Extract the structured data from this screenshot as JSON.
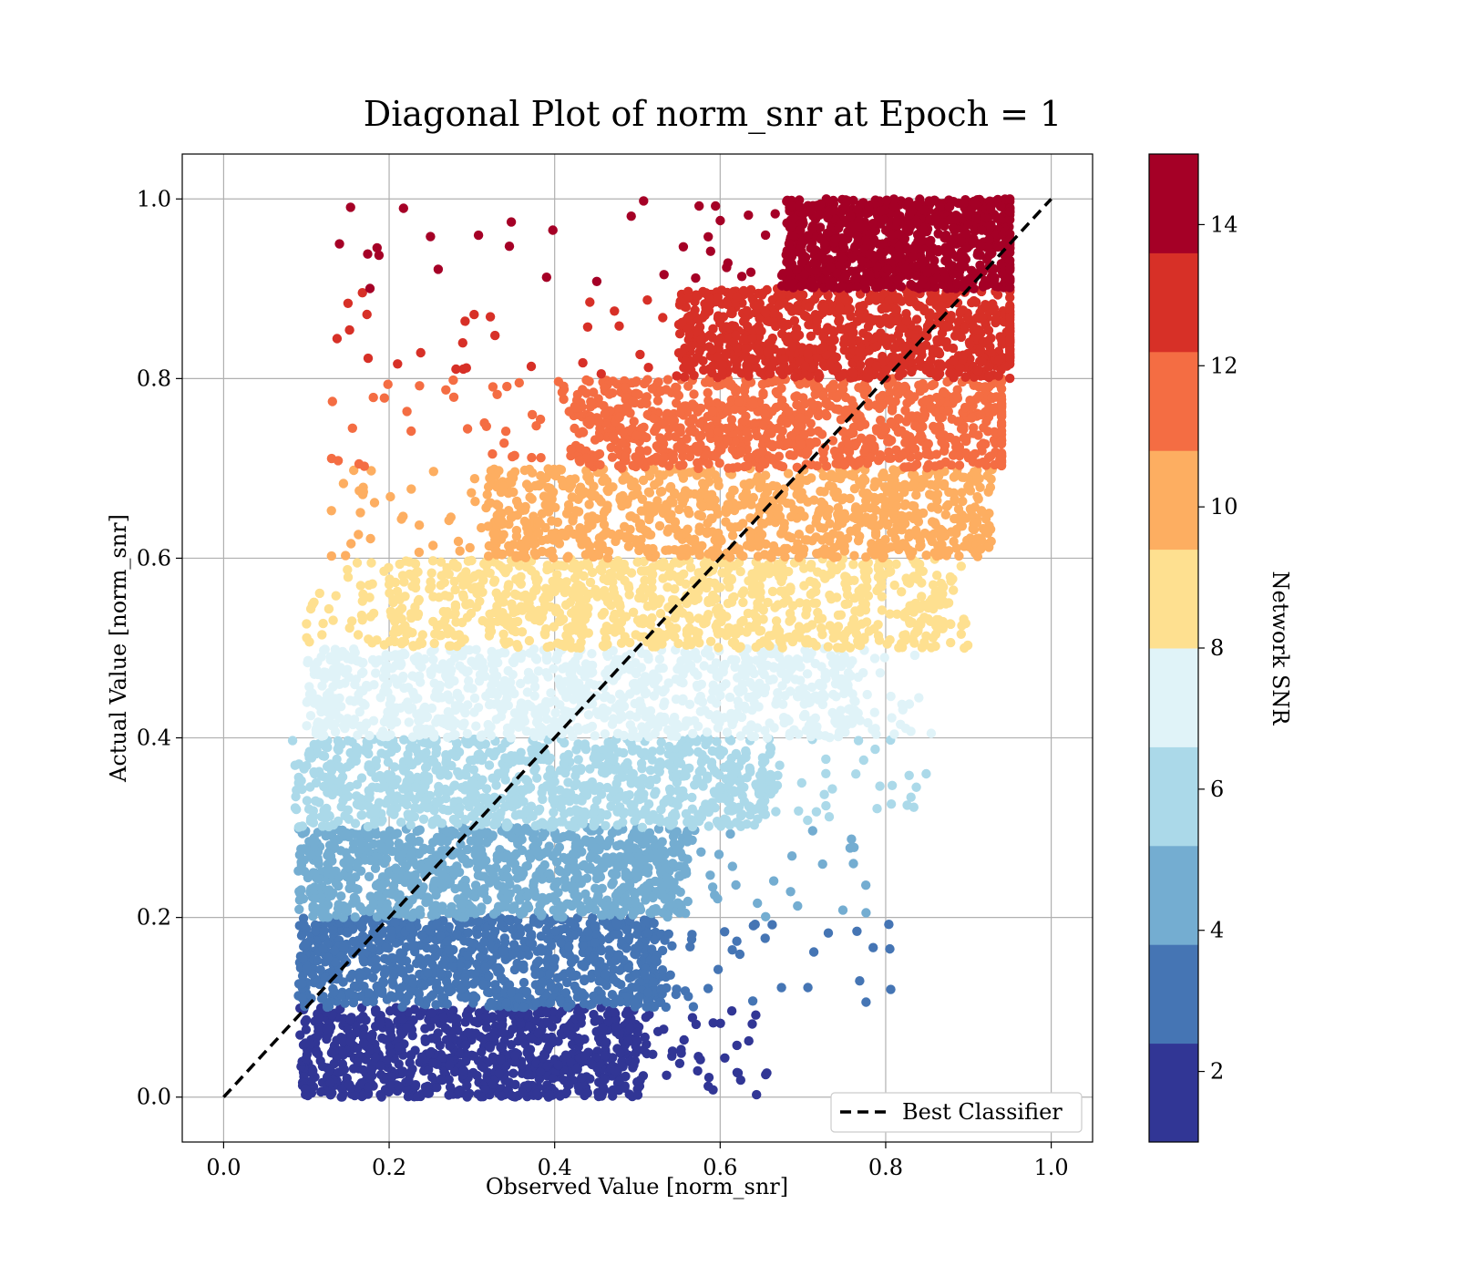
{
  "chart_data": {
    "type": "scatter",
    "title": "Diagonal Plot of norm_snr at Epoch = 1",
    "xlabel": "Observed Value [norm_snr]",
    "ylabel": "Actual Value [norm_snr]",
    "xlim": [
      -0.05,
      1.05
    ],
    "ylim": [
      -0.05,
      1.05
    ],
    "xticks": [
      0.0,
      0.2,
      0.4,
      0.6,
      0.8,
      1.0
    ],
    "xtick_labels": [
      "0.0",
      "0.2",
      "0.4",
      "0.6",
      "0.8",
      "1.0"
    ],
    "yticks": [
      0.0,
      0.2,
      0.4,
      0.6,
      0.8,
      1.0
    ],
    "ytick_labels": [
      "0.0",
      "0.2",
      "0.4",
      "0.6",
      "0.8",
      "1.0"
    ],
    "grid": true,
    "reference_line": {
      "label": "Best Classifier",
      "x": [
        0.0,
        1.0
      ],
      "y": [
        0.0,
        1.0
      ],
      "color": "#000000",
      "style": "dashed"
    },
    "legend": {
      "entries": [
        "Best Classifier"
      ],
      "placement": "lower-right"
    },
    "colorbar": {
      "label": "Network SNR",
      "range": [
        1,
        15
      ],
      "ticks": [
        2,
        4,
        6,
        8,
        10,
        12,
        14
      ],
      "tick_labels": [
        "2",
        "4",
        "6",
        "8",
        "10",
        "12",
        "14"
      ],
      "colors": [
        "#313695",
        "#4575b4",
        "#74add1",
        "#abd9e9",
        "#e0f3f8",
        "#fee090",
        "#fdae61",
        "#f46d43",
        "#d73027",
        "#a50026"
      ]
    },
    "series": [
      {
        "y_range": [
          0.0,
          0.1
        ],
        "color": "#313695",
        "dense_x_range": [
          0.1,
          0.5
        ],
        "x_extent": [
          0.09,
          0.66
        ]
      },
      {
        "y_range": [
          0.1,
          0.2
        ],
        "color": "#4575b4",
        "dense_x_range": [
          0.1,
          0.53
        ],
        "x_extent": [
          0.09,
          0.81
        ]
      },
      {
        "y_range": [
          0.2,
          0.3
        ],
        "color": "#74add1",
        "dense_x_range": [
          0.11,
          0.56
        ],
        "x_extent": [
          0.09,
          0.78
        ]
      },
      {
        "y_range": [
          0.3,
          0.4
        ],
        "color": "#abd9e9",
        "dense_x_range": [
          0.11,
          0.66
        ],
        "x_extent": [
          0.08,
          0.85
        ]
      },
      {
        "y_range": [
          0.4,
          0.5
        ],
        "color": "#e0f3f8",
        "dense_x_range": [
          0.12,
          0.76
        ],
        "x_extent": [
          0.1,
          0.86
        ]
      },
      {
        "y_range": [
          0.5,
          0.6
        ],
        "color": "#fee090",
        "dense_x_range": [
          0.2,
          0.86
        ],
        "x_extent": [
          0.1,
          0.9
        ]
      },
      {
        "y_range": [
          0.6,
          0.7
        ],
        "color": "#fdae61",
        "dense_x_range": [
          0.32,
          0.91
        ],
        "x_extent": [
          0.13,
          0.93
        ]
      },
      {
        "y_range": [
          0.7,
          0.8
        ],
        "color": "#f46d43",
        "dense_x_range": [
          0.42,
          0.94
        ],
        "x_extent": [
          0.12,
          0.94
        ]
      },
      {
        "y_range": [
          0.8,
          0.9
        ],
        "color": "#d73027",
        "dense_x_range": [
          0.55,
          0.95
        ],
        "x_extent": [
          0.13,
          0.95
        ]
      },
      {
        "y_range": [
          0.9,
          1.0
        ],
        "color": "#a50026",
        "dense_x_range": [
          0.68,
          0.95
        ],
        "x_extent": [
          0.14,
          0.95
        ]
      }
    ],
    "outlier_points": [
      {
        "x": 0.805,
        "y": 0.165,
        "color": "#4575b4"
      },
      {
        "x": 0.776,
        "y": 0.236,
        "color": "#74add1"
      },
      {
        "x": 0.761,
        "y": 0.26,
        "color": "#74add1"
      },
      {
        "x": 0.837,
        "y": 0.345,
        "color": "#abd9e9"
      },
      {
        "x": 0.826,
        "y": 0.325,
        "color": "#abd9e9"
      },
      {
        "x": 0.855,
        "y": 0.405,
        "color": "#e0f3f8"
      },
      {
        "x": 0.895,
        "y": 0.5,
        "color": "#fee090"
      },
      {
        "x": 0.14,
        "y": 0.95,
        "color": "#a50026"
      },
      {
        "x": 0.655,
        "y": 0.025,
        "color": "#313695"
      },
      {
        "x": 0.706,
        "y": 0.122,
        "color": "#4575b4"
      }
    ]
  }
}
